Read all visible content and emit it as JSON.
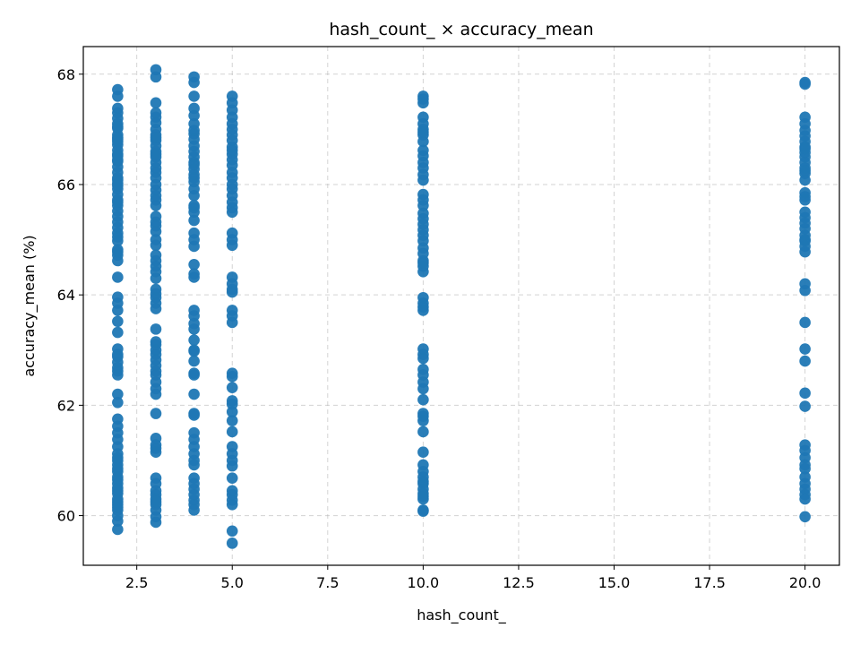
{
  "chart_data": {
    "type": "scatter",
    "title": "hash_count_ × accuracy_mean",
    "xlabel": "hash_count_",
    "ylabel": "accuracy_mean (%)",
    "xlim": [
      1.1,
      20.9
    ],
    "ylim": [
      59.1,
      68.5
    ],
    "xticks": [
      2.5,
      5.0,
      7.5,
      10.0,
      12.5,
      15.0,
      17.5,
      20.0
    ],
    "xtick_labels": [
      "2.5",
      "5.0",
      "7.5",
      "10.0",
      "12.5",
      "15.0",
      "17.5",
      "20.0"
    ],
    "yticks": [
      60,
      62,
      64,
      66,
      68
    ],
    "ytick_labels": [
      "60",
      "62",
      "64",
      "66",
      "68"
    ],
    "grid": true,
    "marker_color": "#1f77b4",
    "series": [
      {
        "x": [
          2,
          2,
          2,
          2,
          2,
          2,
          2,
          2,
          2,
          2,
          2,
          2,
          2,
          2,
          2,
          2,
          2,
          2,
          2,
          2,
          2,
          2,
          2,
          2,
          2,
          2,
          2,
          2,
          2,
          2,
          2,
          2,
          2,
          2,
          2,
          2,
          2,
          2,
          2,
          2,
          2,
          2,
          2,
          2,
          2,
          2,
          2,
          2,
          2,
          2,
          2,
          2,
          2,
          2,
          2,
          2,
          2,
          2,
          2,
          2,
          2,
          2,
          2,
          2,
          2,
          2,
          2,
          2,
          2,
          2,
          2,
          2,
          2,
          2,
          2,
          2,
          2,
          2,
          2,
          2
        ],
        "y": [
          67.72,
          67.6,
          67.38,
          67.3,
          67.2,
          67.1,
          67.02,
          66.9,
          66.82,
          66.72,
          66.62,
          66.52,
          66.42,
          66.32,
          66.22,
          66.12,
          66.02,
          65.92,
          65.82,
          65.72,
          65.62,
          65.52,
          65.42,
          65.32,
          65.22,
          65.12,
          64.98,
          64.82,
          64.72,
          64.62,
          64.32,
          63.96,
          63.72,
          63.52,
          63.32,
          63.02,
          62.88,
          62.78,
          62.68,
          62.55,
          62.2,
          62.05,
          61.75,
          61.5,
          61.38,
          61.25,
          61.12,
          61.0,
          60.92,
          60.8,
          60.7,
          60.58,
          60.5,
          60.4,
          60.3,
          60.2,
          60.1,
          60.0,
          59.9,
          59.75,
          66.45,
          66.85,
          65.05,
          63.85,
          61.62,
          60.65,
          60.45,
          60.25,
          62.92,
          65.98,
          66.08,
          66.78,
          67.05,
          64.78,
          61.05,
          60.85,
          60.15,
          62.62,
          65.68,
          66.55
        ]
      },
      {
        "x": [
          3,
          3,
          3,
          3,
          3,
          3,
          3,
          3,
          3,
          3,
          3,
          3,
          3,
          3,
          3,
          3,
          3,
          3,
          3,
          3,
          3,
          3,
          3,
          3,
          3,
          3,
          3,
          3,
          3,
          3,
          3,
          3,
          3,
          3,
          3,
          3,
          3,
          3,
          3,
          3,
          3,
          3,
          3,
          3,
          3,
          3,
          3,
          3,
          3,
          3,
          3,
          3,
          3,
          3,
          3,
          3,
          3,
          3,
          3,
          3,
          3,
          3,
          3,
          3,
          3,
          3
        ],
        "y": [
          68.08,
          67.95,
          67.48,
          67.22,
          67.12,
          67.0,
          66.9,
          66.8,
          66.7,
          66.6,
          66.5,
          66.4,
          66.3,
          66.22,
          66.12,
          66.0,
          65.9,
          65.72,
          65.62,
          65.42,
          65.32,
          65.15,
          65.0,
          64.9,
          64.62,
          64.52,
          64.42,
          64.3,
          64.1,
          63.95,
          63.85,
          63.75,
          63.38,
          63.15,
          63.0,
          62.92,
          62.82,
          62.72,
          62.55,
          62.42,
          62.3,
          62.2,
          61.85,
          61.4,
          61.28,
          61.15,
          60.68,
          60.45,
          60.38,
          60.3,
          60.2,
          60.1,
          59.98,
          59.88,
          66.85,
          66.55,
          65.8,
          65.25,
          64.72,
          64.02,
          63.1,
          62.62,
          61.22,
          60.58,
          60.25,
          67.3
        ]
      },
      {
        "x": [
          4,
          4,
          4,
          4,
          4,
          4,
          4,
          4,
          4,
          4,
          4,
          4,
          4,
          4,
          4,
          4,
          4,
          4,
          4,
          4,
          4,
          4,
          4,
          4,
          4,
          4,
          4,
          4,
          4,
          4,
          4,
          4,
          4,
          4,
          4,
          4,
          4,
          4,
          4,
          4,
          4,
          4,
          4,
          4,
          4,
          4,
          4,
          4,
          4,
          4,
          4,
          4,
          4,
          4,
          4,
          4
        ],
        "y": [
          67.95,
          67.85,
          67.6,
          67.38,
          67.25,
          67.1,
          66.92,
          66.82,
          66.7,
          66.6,
          66.5,
          66.4,
          66.28,
          66.18,
          66.05,
          65.92,
          65.8,
          65.62,
          65.5,
          65.35,
          65.12,
          65.0,
          64.88,
          64.55,
          64.32,
          63.72,
          63.62,
          63.38,
          63.18,
          63.0,
          62.8,
          62.58,
          62.2,
          61.85,
          61.5,
          61.38,
          61.25,
          61.12,
          61.0,
          60.92,
          60.68,
          60.48,
          60.38,
          60.28,
          60.2,
          60.1,
          66.98,
          66.12,
          65.58,
          63.48,
          62.98,
          62.55,
          61.82,
          60.58,
          64.38,
          66.36
        ]
      },
      {
        "x": [
          5,
          5,
          5,
          5,
          5,
          5,
          5,
          5,
          5,
          5,
          5,
          5,
          5,
          5,
          5,
          5,
          5,
          5,
          5,
          5,
          5,
          5,
          5,
          5,
          5,
          5,
          5,
          5,
          5,
          5,
          5,
          5,
          5,
          5,
          5,
          5,
          5,
          5,
          5,
          5,
          5,
          5,
          5,
          5,
          5,
          5,
          5,
          5,
          5,
          5
        ],
        "y": [
          67.6,
          67.48,
          67.35,
          67.22,
          67.1,
          67.0,
          66.9,
          66.8,
          66.68,
          66.55,
          66.45,
          66.35,
          66.22,
          66.12,
          66.0,
          65.92,
          65.8,
          65.68,
          65.5,
          65.12,
          65.0,
          64.9,
          64.32,
          64.2,
          64.1,
          63.72,
          63.62,
          63.5,
          62.58,
          62.52,
          62.32,
          62.08,
          61.88,
          61.72,
          61.52,
          61.25,
          61.12,
          61.0,
          60.9,
          60.68,
          60.45,
          60.38,
          60.2,
          59.72,
          59.5,
          66.62,
          65.58,
          64.05,
          62.02,
          60.28
        ]
      },
      {
        "x": [
          10,
          10,
          10,
          10,
          10,
          10,
          10,
          10,
          10,
          10,
          10,
          10,
          10,
          10,
          10,
          10,
          10,
          10,
          10,
          10,
          10,
          10,
          10,
          10,
          10,
          10,
          10,
          10,
          10,
          10,
          10,
          10,
          10,
          10,
          10,
          10,
          10,
          10,
          10,
          10,
          10,
          10,
          10,
          10,
          10,
          10,
          10,
          10,
          10,
          10,
          10,
          10,
          10,
          10,
          10,
          10,
          10,
          10
        ],
        "y": [
          67.6,
          67.48,
          67.22,
          67.1,
          67.0,
          66.9,
          66.78,
          66.62,
          66.52,
          66.4,
          66.3,
          66.08,
          65.82,
          65.72,
          65.62,
          65.48,
          65.28,
          65.18,
          65.08,
          64.98,
          64.85,
          64.75,
          64.62,
          64.52,
          64.42,
          63.95,
          63.85,
          63.72,
          63.02,
          62.92,
          62.65,
          62.55,
          62.42,
          62.3,
          62.1,
          61.85,
          61.72,
          61.52,
          61.15,
          60.92,
          60.8,
          60.7,
          60.58,
          60.48,
          60.4,
          60.3,
          60.1,
          60.08,
          67.55,
          66.18,
          65.38,
          64.58,
          63.78,
          62.85,
          61.8,
          60.62,
          60.35,
          66.95
        ]
      },
      {
        "x": [
          20,
          20,
          20,
          20,
          20,
          20,
          20,
          20,
          20,
          20,
          20,
          20,
          20,
          20,
          20,
          20,
          20,
          20,
          20,
          20,
          20,
          20,
          20,
          20,
          20,
          20,
          20,
          20,
          20,
          20,
          20,
          20,
          20,
          20,
          20,
          20,
          20,
          20,
          20,
          20,
          20,
          20,
          20,
          20,
          20,
          20
        ],
        "y": [
          67.85,
          67.82,
          67.22,
          67.1,
          66.98,
          66.88,
          66.78,
          66.68,
          66.58,
          66.5,
          66.4,
          66.3,
          66.2,
          66.08,
          65.85,
          65.72,
          65.5,
          65.4,
          65.3,
          65.2,
          65.08,
          64.98,
          64.88,
          64.78,
          64.2,
          64.08,
          63.5,
          63.02,
          62.8,
          62.22,
          61.98,
          61.28,
          61.18,
          61.05,
          60.92,
          60.7,
          60.58,
          60.48,
          60.38,
          60.3,
          59.98,
          66.65,
          65.78,
          65.0,
          60.85,
          66.25
        ]
      }
    ]
  }
}
